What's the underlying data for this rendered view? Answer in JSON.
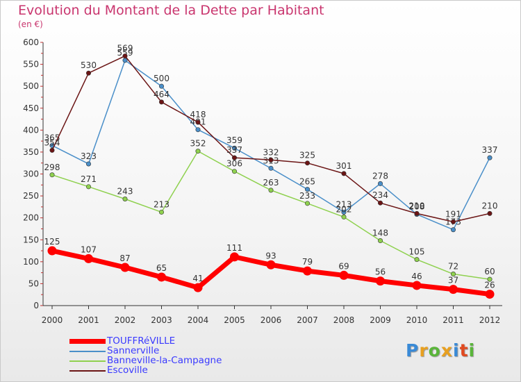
{
  "header": {
    "title": "Evolution du Montant de la Dette par Habitant",
    "subtitle": "(en €)"
  },
  "chart_data": {
    "type": "line",
    "title": "Evolution du Montant de la Dette par Habitant",
    "subtitle": "(en €)",
    "xlabel": "",
    "ylabel": "",
    "x": [
      "2000",
      "2001",
      "2002",
      "2003",
      "2004",
      "2005",
      "2006",
      "2007",
      "2008",
      "2009",
      "2010",
      "2011",
      "2012"
    ],
    "ylim": [
      0,
      600
    ],
    "yticks": [
      0,
      50,
      100,
      150,
      200,
      250,
      300,
      350,
      400,
      450,
      500,
      550,
      600
    ],
    "grid": false,
    "legend_position": "bottom-left",
    "series": [
      {
        "name": "TOUFFRéVILLE",
        "color": "#ff0000",
        "values": [
          125,
          107,
          87,
          65,
          41,
          111,
          93,
          79,
          69,
          56,
          46,
          37,
          26
        ]
      },
      {
        "name": "Sannerville",
        "color": "#4a8fc9",
        "values": [
          365,
          323,
          559,
          500,
          401,
          359,
          313,
          265,
          213,
          278,
          208,
          173,
          337
        ]
      },
      {
        "name": "Banneville-la-Campagne",
        "color": "#8fd14f",
        "values": [
          298,
          271,
          243,
          213,
          352,
          306,
          263,
          233,
          202,
          148,
          105,
          72,
          60
        ]
      },
      {
        "name": "Escoville",
        "color": "#6b1515",
        "values": [
          354,
          530,
          569,
          464,
          418,
          337,
          332,
          325,
          301,
          234,
          210,
          191,
          210
        ]
      }
    ]
  },
  "logo": {
    "letters": [
      "P",
      "r",
      "o",
      "x",
      "i",
      "t",
      "i"
    ],
    "colors": [
      "#3a8ad6",
      "#e8a020",
      "#5ab53a",
      "#e8a020",
      "#3a8ad6",
      "#e04a20",
      "#5ab53a"
    ]
  }
}
